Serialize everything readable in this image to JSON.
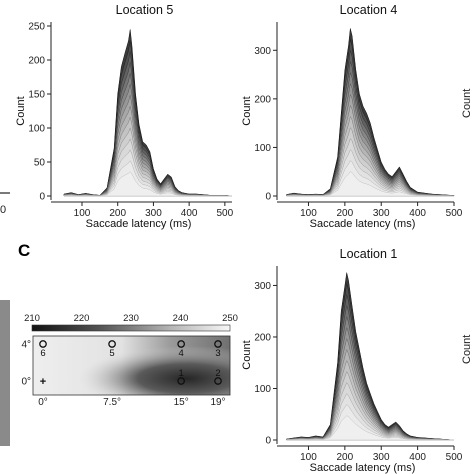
{
  "panel_letter": "C",
  "chart_data": [
    {
      "type": "area",
      "title": "Location  5",
      "xlabel": "Saccade latency (ms)",
      "ylabel": "Count",
      "xlim": [
        30,
        520
      ],
      "ylim": [
        0,
        250
      ],
      "xticks": [
        100,
        200,
        300,
        400,
        500
      ],
      "yticks": [
        0,
        50,
        100,
        150,
        200,
        250
      ],
      "grid": false,
      "series": [
        {
          "x": [
            50,
            70,
            90,
            110,
            130,
            150,
            170,
            190,
            200,
            210,
            220,
            230,
            235,
            240,
            250,
            260,
            270,
            280,
            290,
            300,
            310,
            320,
            330,
            340,
            350,
            360,
            370,
            380,
            390,
            400,
            420,
            440,
            460,
            480,
            500,
            520
          ],
          "y": [
            3,
            5,
            2,
            4,
            2,
            1,
            12,
            70,
            150,
            190,
            210,
            228,
            245,
            220,
            150,
            105,
            80,
            75,
            65,
            40,
            25,
            18,
            25,
            32,
            28,
            14,
            8,
            5,
            4,
            3,
            3,
            2,
            1,
            1,
            1,
            0
          ]
        }
      ]
    },
    {
      "type": "area",
      "title": "Location  4",
      "xlabel": "Saccade latency (ms)",
      "ylabel": "Count",
      "xlim": [
        30,
        500
      ],
      "ylim": [
        0,
        350
      ],
      "xticks": [
        100,
        200,
        300,
        400,
        500
      ],
      "yticks": [
        0,
        100,
        200,
        300
      ],
      "grid": false,
      "series": [
        {
          "x": [
            40,
            60,
            80,
            100,
            120,
            140,
            160,
            180,
            190,
            200,
            210,
            215,
            220,
            230,
            240,
            250,
            260,
            270,
            280,
            290,
            300,
            310,
            320,
            330,
            340,
            350,
            360,
            370,
            380,
            400,
            420,
            440,
            460,
            480,
            500
          ],
          "y": [
            3,
            6,
            4,
            3,
            4,
            3,
            15,
            80,
            170,
            260,
            310,
            345,
            330,
            260,
            210,
            185,
            170,
            150,
            120,
            95,
            70,
            55,
            45,
            40,
            50,
            60,
            45,
            30,
            18,
            8,
            6,
            4,
            3,
            2,
            1
          ]
        }
      ]
    },
    {
      "type": "area",
      "title": "Location  1",
      "xlabel": "Saccade latency (ms)",
      "ylabel": "Count",
      "xlim": [
        30,
        500
      ],
      "ylim": [
        0,
        330
      ],
      "xticks": [
        100,
        200,
        300,
        400,
        500
      ],
      "yticks": [
        0,
        100,
        200,
        300
      ],
      "grid": false,
      "series": [
        {
          "x": [
            40,
            60,
            80,
            100,
            120,
            140,
            160,
            180,
            190,
            200,
            205,
            210,
            220,
            230,
            240,
            250,
            260,
            270,
            280,
            290,
            300,
            310,
            320,
            330,
            340,
            350,
            360,
            370,
            380,
            400,
            420,
            440,
            460,
            480,
            500
          ],
          "y": [
            2,
            4,
            6,
            5,
            8,
            6,
            30,
            150,
            250,
            300,
            325,
            310,
            260,
            210,
            175,
            140,
            110,
            90,
            70,
            55,
            40,
            30,
            25,
            30,
            35,
            28,
            18,
            12,
            8,
            5,
            4,
            3,
            2,
            1,
            0
          ]
        }
      ]
    },
    {
      "type": "heatmap",
      "colorbar_ticks": [
        210,
        220,
        230,
        240,
        250
      ],
      "colorbar_range": [
        210,
        250
      ],
      "x_ticks": [
        "0°",
        "7.5°",
        "15°",
        "19°"
      ],
      "x_values": [
        0,
        7.5,
        15,
        19
      ],
      "y_ticks": [
        "4°",
        "0°"
      ],
      "y_values": [
        4,
        0
      ],
      "fixation_symbol": "+",
      "locations": [
        {
          "label": "6",
          "x": 0,
          "y": 4
        },
        {
          "label": "5",
          "x": 7.5,
          "y": 4
        },
        {
          "label": "4",
          "x": 15,
          "y": 4
        },
        {
          "label": "3",
          "x": 19,
          "y": 4
        },
        {
          "label": "1",
          "x": 15,
          "y": 0
        },
        {
          "label": "2",
          "x": 19,
          "y": 0
        }
      ]
    }
  ],
  "colors": {
    "fill_light": "#f2f2f2",
    "fill_dark": "#3a3a3a",
    "axis": "#222222",
    "map_dark": "#2a2a2a",
    "map_light": "#e8e8e8",
    "side_bar": "#8a8a8a"
  }
}
